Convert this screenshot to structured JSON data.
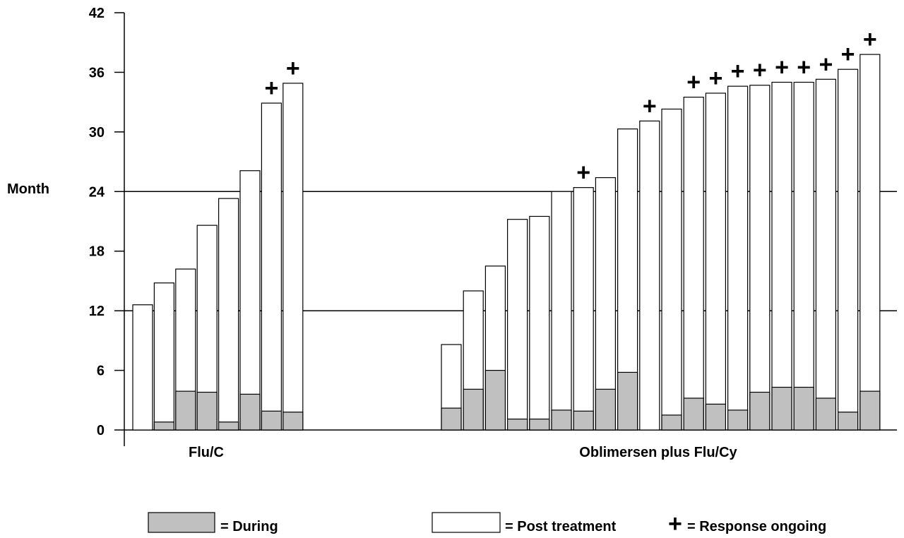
{
  "chart_data": {
    "type": "bar",
    "stacked": true,
    "ylabel": "Month",
    "ylim": [
      0,
      42
    ],
    "yticks": [
      0,
      6,
      12,
      18,
      24,
      30,
      36,
      42
    ],
    "reference_lines": [
      12,
      24
    ],
    "groups": [
      {
        "label": "Flu/C",
        "bars": [
          {
            "during": 0.0,
            "total": 12.6,
            "ongoing": false
          },
          {
            "during": 0.8,
            "total": 14.8,
            "ongoing": false
          },
          {
            "during": 3.9,
            "total": 16.2,
            "ongoing": false
          },
          {
            "during": 3.8,
            "total": 20.6,
            "ongoing": false
          },
          {
            "during": 0.8,
            "total": 23.3,
            "ongoing": false
          },
          {
            "during": 3.6,
            "total": 26.1,
            "ongoing": false
          },
          {
            "during": 1.9,
            "total": 32.9,
            "ongoing": true
          },
          {
            "during": 1.8,
            "total": 34.9,
            "ongoing": true
          }
        ]
      },
      {
        "label": "Oblimersen plus Flu/Cy",
        "bars": [
          {
            "during": 2.2,
            "total": 8.6,
            "ongoing": false
          },
          {
            "during": 4.1,
            "total": 14.0,
            "ongoing": false
          },
          {
            "during": 6.0,
            "total": 16.5,
            "ongoing": false
          },
          {
            "during": 1.1,
            "total": 21.2,
            "ongoing": false
          },
          {
            "during": 1.1,
            "total": 21.5,
            "ongoing": false
          },
          {
            "during": 2.0,
            "total": 24.0,
            "ongoing": false
          },
          {
            "during": 1.9,
            "total": 24.4,
            "ongoing": true
          },
          {
            "during": 4.1,
            "total": 25.4,
            "ongoing": false
          },
          {
            "during": 5.8,
            "total": 30.3,
            "ongoing": false
          },
          {
            "during": 0.0,
            "total": 31.1,
            "ongoing": true
          },
          {
            "during": 1.5,
            "total": 32.3,
            "ongoing": false
          },
          {
            "during": 3.2,
            "total": 33.5,
            "ongoing": true
          },
          {
            "during": 2.6,
            "total": 33.9,
            "ongoing": true
          },
          {
            "during": 2.0,
            "total": 34.6,
            "ongoing": true
          },
          {
            "during": 3.8,
            "total": 34.7,
            "ongoing": true
          },
          {
            "during": 4.3,
            "total": 35.0,
            "ongoing": true
          },
          {
            "during": 4.3,
            "total": 35.0,
            "ongoing": true
          },
          {
            "during": 3.2,
            "total": 35.3,
            "ongoing": true
          },
          {
            "during": 1.8,
            "total": 36.3,
            "ongoing": true
          },
          {
            "during": 3.9,
            "total": 37.8,
            "ongoing": true
          }
        ]
      }
    ],
    "legend": [
      {
        "label": "= During",
        "swatch": "during"
      },
      {
        "label": "= Post treatment",
        "swatch": "post"
      },
      {
        "label": "= Response ongoing",
        "swatch": "plus"
      }
    ],
    "colors": {
      "during": "#c0c0c0",
      "post": "#ffffff",
      "stroke": "#000000"
    }
  }
}
